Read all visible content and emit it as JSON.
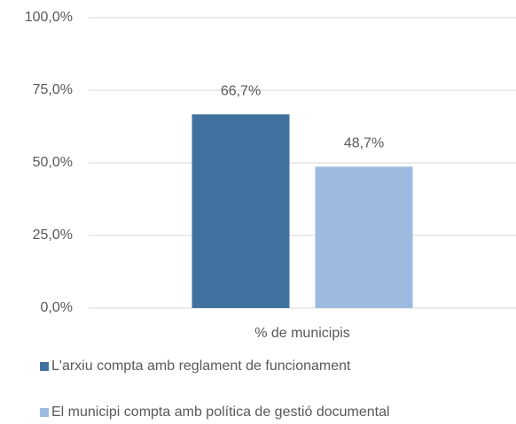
{
  "chart_data": {
    "type": "bar",
    "categories": [
      "% de municipis"
    ],
    "series": [
      {
        "name": "L'arxiu compta amb reglament de funcionament",
        "color": "#41729f",
        "values": [
          66.7
        ],
        "value_labels": [
          "66,7%"
        ]
      },
      {
        "name": "El municipi compta amb política de gestió documental",
        "color": "#9dbbe0",
        "values": [
          48.7
        ],
        "value_labels": [
          "48,7%"
        ]
      }
    ],
    "ylim": [
      0,
      100
    ],
    "yticks": [
      {
        "value": 0,
        "label": "0,0%"
      },
      {
        "value": 25,
        "label": "25,0%"
      },
      {
        "value": 50,
        "label": "50,0%"
      },
      {
        "value": 75,
        "label": "75,0%"
      },
      {
        "value": 100,
        "label": "100,0%"
      }
    ],
    "grid": true,
    "legend": "bottom"
  }
}
